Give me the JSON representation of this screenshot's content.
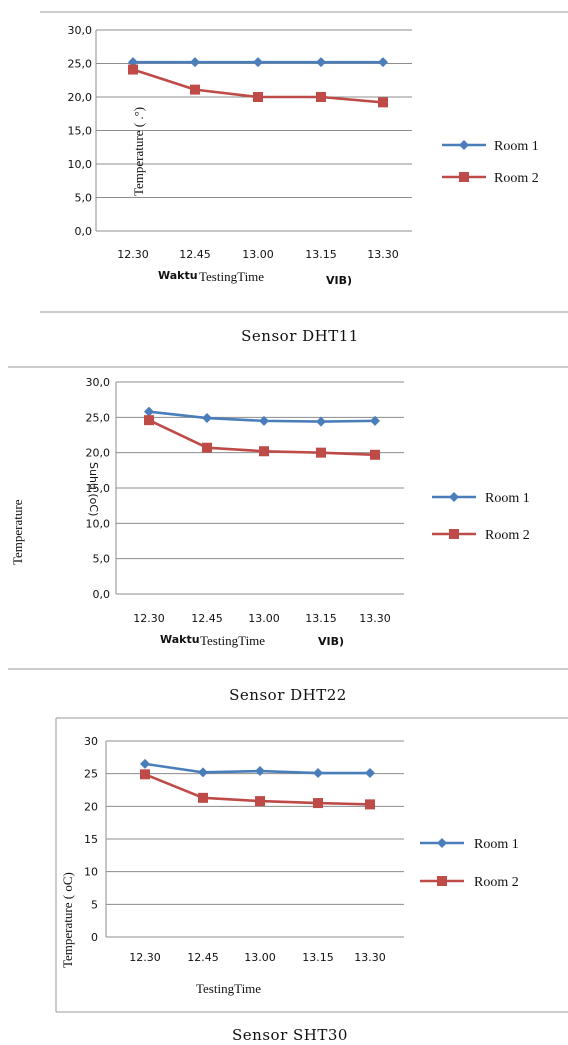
{
  "chart_data": [
    {
      "type": "line",
      "title": "Sensor DHT11",
      "xlabel_prefix": "Waktu",
      "xlabel": "TestingTime",
      "xlabel_suffix": "VIB)",
      "ylabel": "Temperature ( .°)",
      "ylim": [
        0,
        30
      ],
      "yticks": [
        "0,0",
        "5,0",
        "10,0",
        "15,0",
        "20,0",
        "25,0",
        "30,0"
      ],
      "categories": [
        "12.30",
        "12.45",
        "13.00",
        "13.15",
        "13.30"
      ],
      "grid": true,
      "legend": "right",
      "series": [
        {
          "name": "Room 1",
          "color": "#4a7ebb",
          "marker": "diamond",
          "values": [
            25.2,
            25.2,
            25.2,
            25.2,
            25.2
          ]
        },
        {
          "name": "Room 2",
          "color": "#be4b48",
          "marker": "square",
          "values": [
            24.1,
            21.1,
            20.0,
            20.0,
            19.2
          ]
        }
      ]
    },
    {
      "type": "line",
      "title": "Sensor DHT22",
      "xlabel_prefix": "Waktu",
      "xlabel": "TestingTime",
      "xlabel_suffix": "VIB)",
      "ylabel": "Temperature",
      "ylabel2": "Suhu (oC)",
      "ylim": [
        0,
        30
      ],
      "yticks": [
        "0,0",
        "5,0",
        "10,0",
        "15,0",
        "20,0",
        "25,0",
        "30,0"
      ],
      "categories": [
        "12.30",
        "12.45",
        "13.00",
        "13.15",
        "13.30"
      ],
      "grid": true,
      "legend": "right",
      "series": [
        {
          "name": "Room 1",
          "color": "#4a7ebb",
          "marker": "diamond",
          "values": [
            25.8,
            24.9,
            24.5,
            24.4,
            24.5
          ]
        },
        {
          "name": "Room 2",
          "color": "#be4b48",
          "marker": "square",
          "values": [
            24.6,
            20.7,
            20.2,
            20.0,
            19.7
          ]
        }
      ]
    },
    {
      "type": "line",
      "title": "Sensor SHT30",
      "xlabel": "TestingTime",
      "ylabel": "Temperature ( oC)",
      "ylim": [
        0,
        30
      ],
      "yticks": [
        "0",
        "5",
        "10",
        "15",
        "20",
        "25",
        "30"
      ],
      "categories": [
        "12.30",
        "12.45",
        "13.00",
        "13.15",
        "13.30"
      ],
      "grid": true,
      "legend": "right",
      "series": [
        {
          "name": "Room 1",
          "color": "#4a7ebb",
          "marker": "diamond",
          "values": [
            26.5,
            25.2,
            25.4,
            25.1,
            25.1
          ]
        },
        {
          "name": "Room 2",
          "color": "#be4b48",
          "marker": "square",
          "values": [
            24.9,
            21.3,
            20.8,
            20.5,
            20.3
          ]
        }
      ]
    }
  ]
}
